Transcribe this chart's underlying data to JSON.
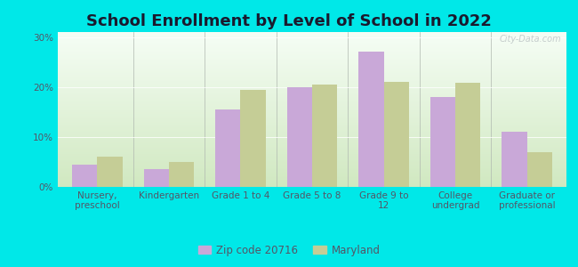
{
  "title": "School Enrollment by Level of School in 2022",
  "categories": [
    "Nursery,\npreschool",
    "Kindergarten",
    "Grade 1 to 4",
    "Grade 5 to 8",
    "Grade 9 to\n12",
    "College\nundergrad",
    "Graduate or\nprofessional"
  ],
  "zip_values": [
    4.5,
    3.5,
    15.5,
    20.0,
    27.0,
    18.0,
    11.0
  ],
  "md_values": [
    6.0,
    5.0,
    19.5,
    20.5,
    21.0,
    20.8,
    7.0
  ],
  "zip_color": "#c9a8d8",
  "md_color": "#c5cd96",
  "background_outer": "#00e8e8",
  "background_inner_top": "#f5fdf5",
  "background_inner_bottom": "#d0e8c0",
  "ylim": [
    0,
    31
  ],
  "yticks": [
    0,
    10,
    20,
    30
  ],
  "bar_width": 0.35,
  "title_fontsize": 13,
  "tick_fontsize": 7.5,
  "legend_fontsize": 8.5,
  "zip_label": "Zip code 20716",
  "md_label": "Maryland",
  "watermark": "City-Data.com",
  "title_color": "#1a1a2e",
  "tick_color": "#555566"
}
